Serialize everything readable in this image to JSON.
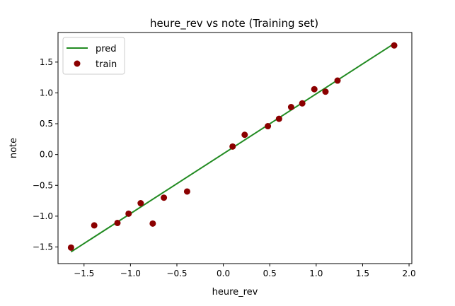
{
  "chart_data": {
    "type": "scatter",
    "title": "heure_rev vs note (Training set)",
    "xlabel": "heure_rev",
    "ylabel": "note",
    "xlim": [
      -1.78,
      2.03
    ],
    "ylim": [
      -1.77,
      1.98
    ],
    "xticks": [
      -1.5,
      -1.0,
      -0.5,
      0.0,
      0.5,
      1.0,
      1.5,
      2.0
    ],
    "xtick_labels": [
      "−1.5",
      "−1.0",
      "−0.5",
      "0.0",
      "0.5",
      "1.0",
      "1.5",
      "2.0"
    ],
    "yticks": [
      -1.5,
      -1.0,
      -0.5,
      0.0,
      0.5,
      1.0,
      1.5
    ],
    "ytick_labels": [
      "−1.5",
      "−1.0",
      "−0.5",
      "0.0",
      "0.5",
      "1.0",
      "1.5"
    ],
    "grid": false,
    "legend_position": "top-left",
    "series": [
      {
        "name": "pred",
        "kind": "line",
        "color": "#228b22",
        "x": [
          -1.64,
          1.84
        ],
        "y": [
          -1.58,
          1.8
        ]
      },
      {
        "name": "train",
        "kind": "scatter",
        "color": "#8b0000",
        "x": [
          -1.64,
          -1.39,
          -1.14,
          -1.02,
          -0.89,
          -0.76,
          -0.64,
          -0.39,
          0.1,
          0.23,
          0.48,
          0.6,
          0.73,
          0.85,
          0.98,
          1.1,
          1.23,
          1.84
        ],
        "y": [
          -1.51,
          -1.15,
          -1.11,
          -0.96,
          -0.79,
          -1.12,
          -0.7,
          -0.6,
          0.13,
          0.32,
          0.46,
          0.58,
          0.77,
          0.83,
          1.06,
          1.02,
          1.2,
          1.77
        ]
      }
    ]
  }
}
